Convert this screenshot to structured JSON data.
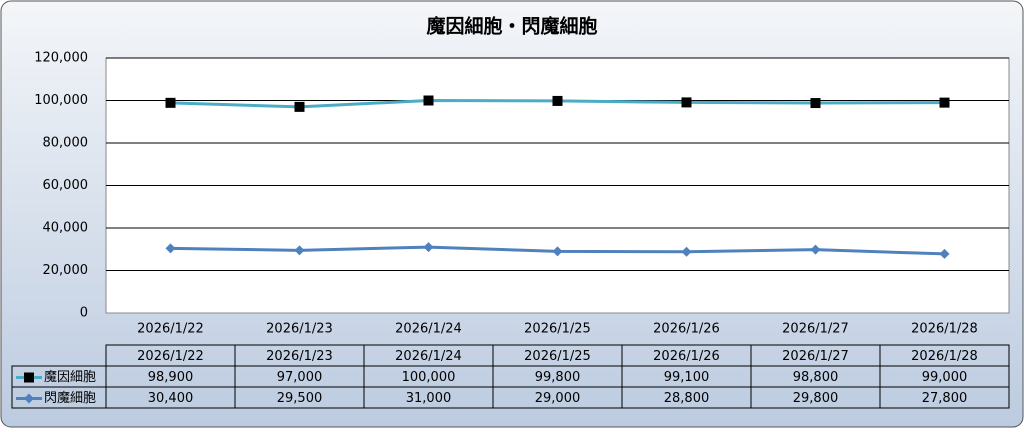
{
  "chart_data": {
    "type": "line",
    "title": "魔因細胞・閃魔細胞",
    "categories": [
      "2026/1/22",
      "2026/1/23",
      "2026/1/24",
      "2026/1/25",
      "2026/1/26",
      "2026/1/27",
      "2026/1/28"
    ],
    "series": [
      {
        "name": "魔因細胞",
        "color": "#4bacc6",
        "marker": "square",
        "marker_color": "#000000",
        "values": [
          98900,
          97000,
          100000,
          99800,
          99100,
          98800,
          99000
        ],
        "value_labels": [
          "98,900",
          "97,000",
          "100,000",
          "99,800",
          "99,100",
          "98,800",
          "99,000"
        ]
      },
      {
        "name": "閃魔細胞",
        "color": "#4f81bd",
        "marker": "diamond",
        "marker_color": "#4f81bd",
        "values": [
          30400,
          29500,
          31000,
          29000,
          28800,
          29800,
          27800
        ],
        "value_labels": [
          "30,400",
          "29,500",
          "31,000",
          "29,000",
          "28,800",
          "29,800",
          "27,800"
        ]
      }
    ],
    "ylim": [
      0,
      120000
    ],
    "yticks": [
      0,
      {
        "value": 20000,
        "label": "20,000"
      },
      {
        "value": 40000,
        "label": "40,000"
      },
      {
        "value": 60000,
        "label": "60,000"
      },
      {
        "value": 80000,
        "label": "80,000"
      },
      {
        "value": 100000,
        "label": "100,000"
      },
      {
        "value": 120000,
        "label": "120,000"
      }
    ],
    "grid": true,
    "data_table": true
  }
}
